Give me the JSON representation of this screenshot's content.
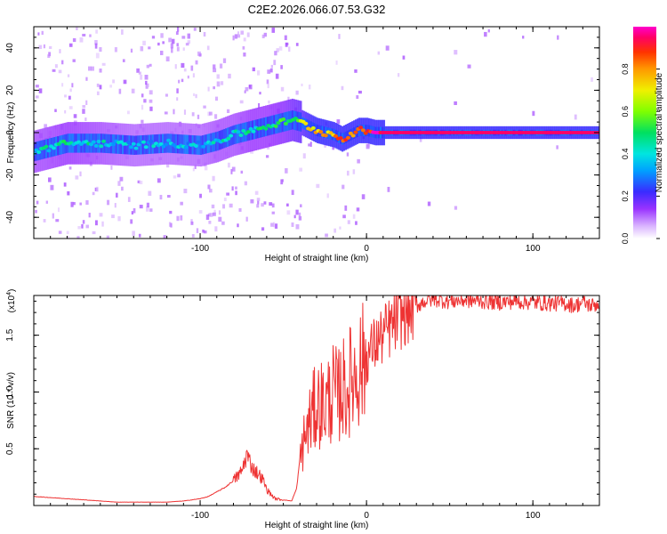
{
  "title": "C2E2.2026.066.07.53.G32",
  "chart_data": [
    {
      "type": "heatmap",
      "xlabel": "Height of straight line (km)",
      "ylabel": "Frequency (Hz)",
      "xlim": [
        -200,
        140
      ],
      "ylim": [
        -50,
        50
      ],
      "xticks": [
        -100,
        0,
        100
      ],
      "xtick_labels": [
        "-100",
        "0",
        "100"
      ],
      "yticks": [
        -40,
        -20,
        0,
        20,
        40
      ],
      "ytick_labels": [
        "-40",
        "-20",
        "0",
        "20",
        "40"
      ],
      "colorbar": {
        "label": "Normalized spectral amplitude",
        "range": [
          0,
          1
        ],
        "ticks": [
          0.0,
          0.2,
          0.4,
          0.6,
          0.8
        ],
        "tick_labels": [
          "0.0",
          "0.2",
          "0.4",
          "0.6",
          "0.8"
        ],
        "colormap": "rainbow"
      },
      "ridge": {
        "height_km": [
          -200,
          -180,
          -160,
          -140,
          -120,
          -100,
          -90,
          -80,
          -70,
          -60,
          -50,
          -45,
          -40,
          -35,
          -30,
          -25,
          -20,
          -15,
          -10,
          -5,
          0,
          5,
          10,
          20,
          60,
          100,
          140
        ],
        "frequency_hz": [
          -9,
          -5,
          -5,
          -6,
          -5,
          -6,
          -4,
          -1,
          1,
          3,
          5,
          6,
          5,
          3,
          1,
          0,
          -1,
          -3,
          -1,
          1,
          1,
          0,
          0,
          0,
          0,
          0,
          0
        ],
        "amplitude": [
          0.4,
          0.45,
          0.4,
          0.35,
          0.35,
          0.35,
          0.4,
          0.4,
          0.45,
          0.45,
          0.5,
          0.55,
          0.6,
          0.7,
          0.75,
          0.75,
          0.8,
          0.85,
          0.8,
          0.85,
          0.9,
          0.95,
          0.95,
          0.95,
          0.95,
          0.95,
          0.95
        ]
      }
    },
    {
      "type": "line",
      "xlabel": "Height of straight line (km)",
      "ylabel": "SNR (10 * v/v)",
      "y_scale_label": "(x10",
      "y_scale_exponent": "4",
      "xlim": [
        -200,
        140
      ],
      "ylim": [
        0,
        1.85
      ],
      "xticks": [
        -100,
        0,
        100
      ],
      "xtick_labels": [
        "-100",
        "0",
        "100"
      ],
      "yticks": [
        0.5,
        1.0,
        1.5
      ],
      "ytick_labels": [
        "0.5",
        "1.0",
        "1.5"
      ],
      "series": [
        {
          "name": "SNR",
          "color": "#ee3333",
          "x": [
            -200,
            -190,
            -180,
            -170,
            -160,
            -150,
            -140,
            -130,
            -120,
            -110,
            -100,
            -95,
            -90,
            -85,
            -80,
            -75,
            -72,
            -70,
            -68,
            -65,
            -62,
            -60,
            -55,
            -50,
            -45,
            -42,
            -40,
            -38,
            -35,
            -32,
            -30,
            -27,
            -25,
            -22,
            -20,
            -17,
            -15,
            -12,
            -10,
            -7,
            -5,
            -2,
            0,
            3,
            5,
            10,
            15,
            20,
            25,
            30,
            35,
            40,
            50,
            60,
            70,
            80,
            90,
            100,
            110,
            120,
            125,
            130,
            135,
            140
          ],
          "y": [
            0.08,
            0.07,
            0.06,
            0.05,
            0.04,
            0.03,
            0.03,
            0.03,
            0.03,
            0.04,
            0.06,
            0.08,
            0.12,
            0.16,
            0.22,
            0.3,
            0.45,
            0.38,
            0.32,
            0.28,
            0.22,
            0.14,
            0.06,
            0.05,
            0.04,
            0.15,
            0.42,
            0.55,
            0.7,
            0.82,
            0.88,
            0.9,
            0.88,
            0.95,
            1.0,
            0.95,
            1.05,
            1.0,
            1.1,
            1.15,
            1.2,
            1.25,
            1.3,
            1.38,
            1.42,
            1.5,
            1.58,
            1.66,
            1.72,
            1.76,
            1.8,
            1.82,
            1.8,
            1.81,
            1.8,
            1.79,
            1.8,
            1.79,
            1.78,
            1.78,
            1.76,
            1.79,
            1.76,
            1.78
          ]
        }
      ]
    }
  ]
}
